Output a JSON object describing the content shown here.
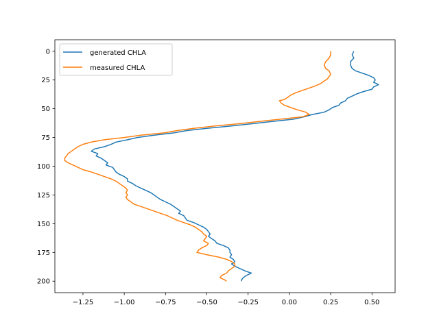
{
  "chart_data": {
    "type": "line",
    "title": "",
    "xlabel": "",
    "ylabel": "",
    "xlim": [
      -1.42,
      0.64
    ],
    "ylim": [
      210,
      -10
    ],
    "y_inverted": true,
    "grid": false,
    "legend_placement": "top-left",
    "x_ticks": [
      -1.25,
      -1.0,
      -0.75,
      -0.5,
      -0.25,
      0.0,
      0.25,
      0.5
    ],
    "x_tick_labels": [
      "−1.25",
      "−1.00",
      "−0.75",
      "−0.50",
      "−0.25",
      "0.00",
      "0.25",
      "0.50"
    ],
    "y_ticks": [
      0,
      25,
      50,
      75,
      100,
      125,
      150,
      175,
      200
    ],
    "y_tick_labels": [
      "0",
      "25",
      "50",
      "75",
      "100",
      "125",
      "150",
      "175",
      "200"
    ],
    "series": [
      {
        "name": "generated CHLA",
        "color": "#1f77b4",
        "points": [
          [
            0.39,
            0
          ],
          [
            0.38,
            3
          ],
          [
            0.39,
            6
          ],
          [
            0.37,
            9
          ],
          [
            0.37,
            12
          ],
          [
            0.38,
            15
          ],
          [
            0.4,
            17
          ],
          [
            0.44,
            19
          ],
          [
            0.48,
            21
          ],
          [
            0.51,
            23
          ],
          [
            0.52,
            25
          ],
          [
            0.51,
            27
          ],
          [
            0.54,
            29
          ],
          [
            0.51,
            31
          ],
          [
            0.5,
            33
          ],
          [
            0.45,
            35
          ],
          [
            0.41,
            37
          ],
          [
            0.38,
            39
          ],
          [
            0.35,
            41
          ],
          [
            0.34,
            43
          ],
          [
            0.31,
            45
          ],
          [
            0.3,
            47
          ],
          [
            0.26,
            49
          ],
          [
            0.24,
            51
          ],
          [
            0.21,
            53
          ],
          [
            0.14,
            55
          ],
          [
            0.09,
            57
          ],
          [
            0.03,
            59
          ],
          [
            -0.1,
            61
          ],
          [
            -0.22,
            63
          ],
          [
            -0.35,
            65
          ],
          [
            -0.5,
            67
          ],
          [
            -0.62,
            69
          ],
          [
            -0.7,
            71
          ],
          [
            -0.82,
            73
          ],
          [
            -0.92,
            75
          ],
          [
            -0.98,
            77
          ],
          [
            -1.05,
            79
          ],
          [
            -1.08,
            81
          ],
          [
            -1.12,
            83
          ],
          [
            -1.18,
            85
          ],
          [
            -1.2,
            87
          ],
          [
            -1.16,
            89
          ],
          [
            -1.17,
            91
          ],
          [
            -1.14,
            93
          ],
          [
            -1.12,
            95
          ],
          [
            -1.1,
            97
          ],
          [
            -1.11,
            99
          ],
          [
            -1.07,
            101
          ],
          [
            -1.06,
            103
          ],
          [
            -1.05,
            105
          ],
          [
            -1.03,
            107
          ],
          [
            -1.0,
            109
          ],
          [
            -0.98,
            111
          ],
          [
            -0.98,
            113
          ],
          [
            -0.95,
            115
          ],
          [
            -0.93,
            117
          ],
          [
            -0.9,
            119
          ],
          [
            -0.87,
            121
          ],
          [
            -0.84,
            123
          ],
          [
            -0.82,
            125
          ],
          [
            -0.8,
            127
          ],
          [
            -0.78,
            129
          ],
          [
            -0.75,
            131
          ],
          [
            -0.72,
            133
          ],
          [
            -0.7,
            135
          ],
          [
            -0.68,
            137
          ],
          [
            -0.66,
            139
          ],
          [
            -0.67,
            141
          ],
          [
            -0.64,
            143
          ],
          [
            -0.63,
            145
          ],
          [
            -0.62,
            147
          ],
          [
            -0.58,
            149
          ],
          [
            -0.55,
            151
          ],
          [
            -0.52,
            153
          ],
          [
            -0.5,
            155
          ],
          [
            -0.49,
            157
          ],
          [
            -0.48,
            159
          ],
          [
            -0.49,
            161
          ],
          [
            -0.47,
            163
          ],
          [
            -0.45,
            165
          ],
          [
            -0.44,
            167
          ],
          [
            -0.4,
            169
          ],
          [
            -0.37,
            171
          ],
          [
            -0.36,
            173
          ],
          [
            -0.36,
            175
          ],
          [
            -0.35,
            177
          ],
          [
            -0.36,
            179
          ],
          [
            -0.34,
            181
          ],
          [
            -0.33,
            183
          ],
          [
            -0.35,
            185
          ],
          [
            -0.33,
            187
          ],
          [
            -0.3,
            189
          ],
          [
            -0.27,
            191
          ],
          [
            -0.23,
            193
          ],
          [
            -0.26,
            195
          ],
          [
            -0.28,
            197
          ],
          [
            -0.29,
            199
          ],
          [
            -0.29,
            200
          ]
        ]
      },
      {
        "name": "measured CHLA",
        "color": "#ff7f0e",
        "points": [
          [
            0.25,
            0
          ],
          [
            0.25,
            3
          ],
          [
            0.24,
            6
          ],
          [
            0.22,
            9
          ],
          [
            0.21,
            12
          ],
          [
            0.22,
            15
          ],
          [
            0.24,
            17
          ],
          [
            0.25,
            20
          ],
          [
            0.24,
            22
          ],
          [
            0.23,
            24
          ],
          [
            0.21,
            26
          ],
          [
            0.19,
            28
          ],
          [
            0.16,
            30
          ],
          [
            0.12,
            32
          ],
          [
            0.08,
            34
          ],
          [
            0.04,
            36
          ],
          [
            0.01,
            38
          ],
          [
            -0.01,
            40
          ],
          [
            -0.03,
            42
          ],
          [
            -0.06,
            43
          ],
          [
            -0.05,
            45
          ],
          [
            -0.03,
            47
          ],
          [
            0.01,
            49
          ],
          [
            0.05,
            51
          ],
          [
            0.1,
            53
          ],
          [
            0.12,
            55
          ],
          [
            0.08,
            57
          ],
          [
            -0.05,
            59
          ],
          [
            -0.18,
            61
          ],
          [
            -0.3,
            63
          ],
          [
            -0.45,
            65
          ],
          [
            -0.58,
            67
          ],
          [
            -0.68,
            69
          ],
          [
            -0.76,
            71
          ],
          [
            -0.9,
            73
          ],
          [
            -1.0,
            75
          ],
          [
            -1.12,
            77
          ],
          [
            -1.2,
            79
          ],
          [
            -1.25,
            81
          ],
          [
            -1.28,
            83
          ],
          [
            -1.3,
            85
          ],
          [
            -1.32,
            87
          ],
          [
            -1.34,
            89
          ],
          [
            -1.35,
            91
          ],
          [
            -1.36,
            93
          ],
          [
            -1.36,
            95
          ],
          [
            -1.34,
            97
          ],
          [
            -1.31,
            99
          ],
          [
            -1.28,
            101
          ],
          [
            -1.25,
            103
          ],
          [
            -1.2,
            105
          ],
          [
            -1.16,
            107
          ],
          [
            -1.12,
            109
          ],
          [
            -1.08,
            111
          ],
          [
            -1.05,
            113
          ],
          [
            -1.03,
            115
          ],
          [
            -1.01,
            117
          ],
          [
            -0.99,
            119
          ],
          [
            -0.98,
            121
          ],
          [
            -0.99,
            123
          ],
          [
            -0.98,
            125
          ],
          [
            -0.99,
            127
          ],
          [
            -0.98,
            129
          ],
          [
            -0.96,
            131
          ],
          [
            -0.94,
            133
          ],
          [
            -0.9,
            135
          ],
          [
            -0.86,
            137
          ],
          [
            -0.82,
            139
          ],
          [
            -0.78,
            141
          ],
          [
            -0.74,
            143
          ],
          [
            -0.71,
            145
          ],
          [
            -0.68,
            147
          ],
          [
            -0.64,
            149
          ],
          [
            -0.6,
            151
          ],
          [
            -0.57,
            153
          ],
          [
            -0.55,
            155
          ],
          [
            -0.53,
            157
          ],
          [
            -0.52,
            159
          ],
          [
            -0.5,
            161
          ],
          [
            -0.51,
            163
          ],
          [
            -0.52,
            165
          ],
          [
            -0.49,
            167
          ],
          [
            -0.5,
            169
          ],
          [
            -0.53,
            171
          ],
          [
            -0.55,
            173
          ],
          [
            -0.56,
            175
          ],
          [
            -0.5,
            177
          ],
          [
            -0.43,
            179
          ],
          [
            -0.38,
            181
          ],
          [
            -0.35,
            183
          ],
          [
            -0.33,
            185
          ],
          [
            -0.33,
            187
          ],
          [
            -0.35,
            189
          ],
          [
            -0.37,
            191
          ],
          [
            -0.38,
            193
          ],
          [
            -0.41,
            195
          ],
          [
            -0.42,
            197
          ],
          [
            -0.39,
            199
          ],
          [
            -0.38,
            200
          ]
        ]
      }
    ]
  }
}
